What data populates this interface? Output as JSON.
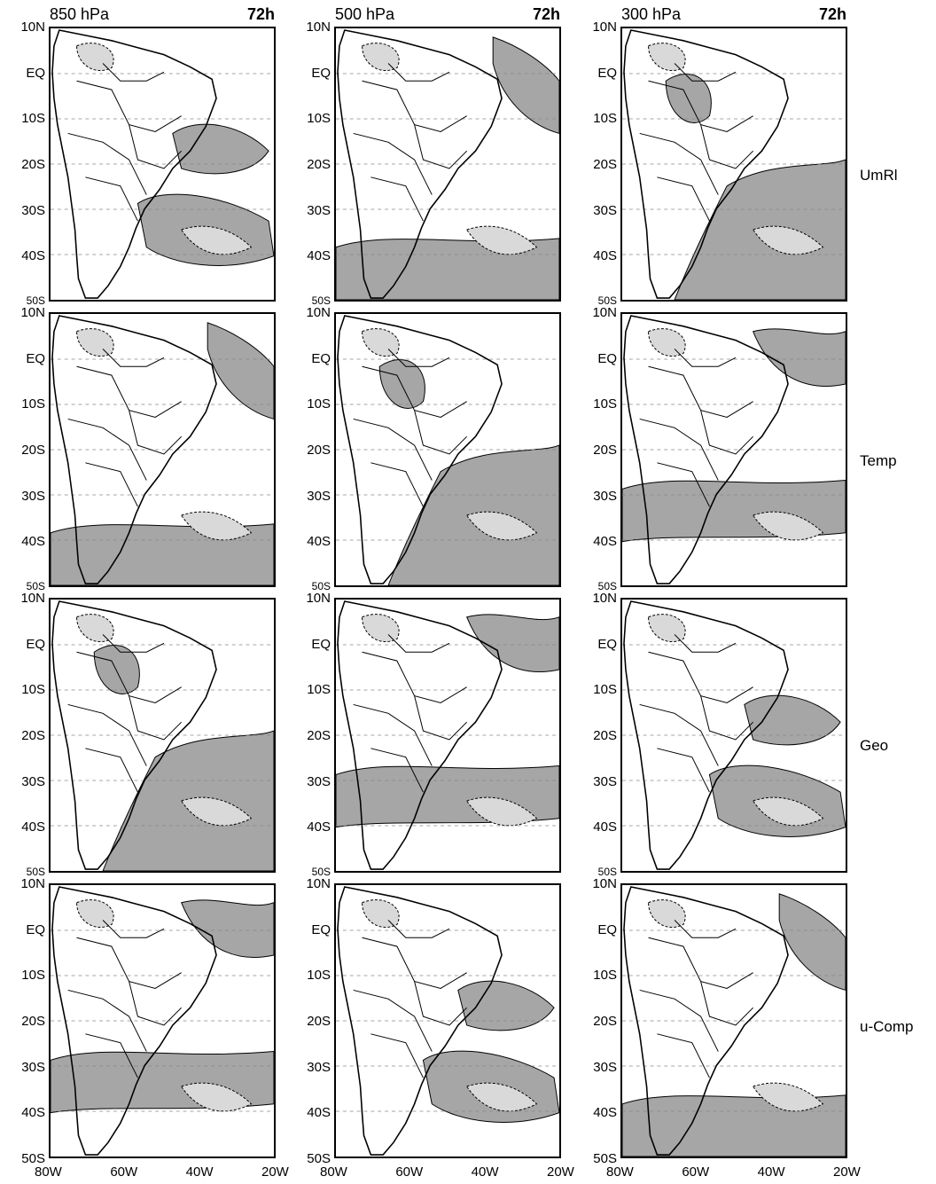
{
  "columns": [
    {
      "level": "850 hPa",
      "hour": "72h"
    },
    {
      "level": "500 hPa",
      "hour": "72h"
    },
    {
      "level": "300 hPa",
      "hour": "72h"
    }
  ],
  "rows": [
    {
      "label": "UmRl"
    },
    {
      "label": "Temp"
    },
    {
      "label": "Geo"
    },
    {
      "label": "u-Comp"
    }
  ],
  "lat_ticks": [
    "10N",
    "EQ",
    "10S",
    "20S",
    "30S",
    "40S",
    "50S"
  ],
  "lon_ticks": [
    "80W",
    "60W",
    "40W",
    "20W"
  ],
  "colors": {
    "shade_dark": "#a6a6a6",
    "shade_light": "#d9d9d9",
    "land_line": "#000000",
    "grid": "#888888"
  }
}
